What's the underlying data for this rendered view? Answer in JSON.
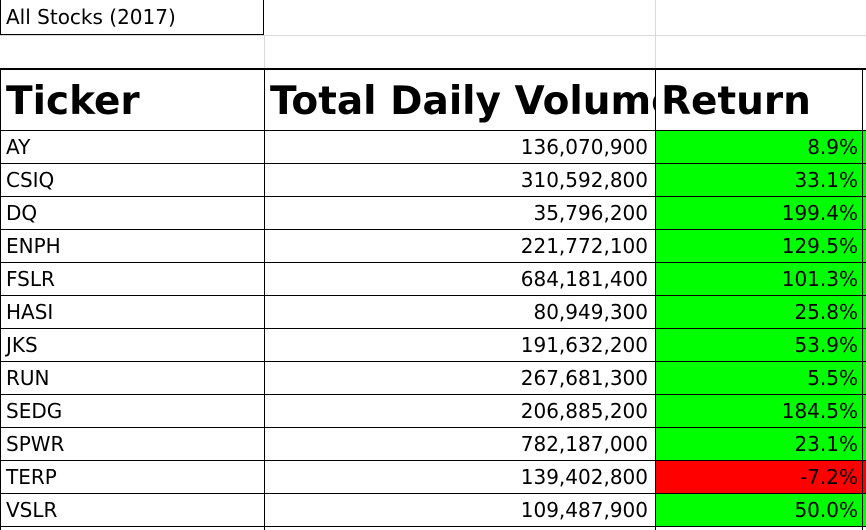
{
  "sheet": {
    "title": "All Stocks (2017)",
    "headers": {
      "ticker": "Ticker",
      "volume": "Total Daily Volume",
      "return": "Return"
    },
    "colors": {
      "positive": "#00ff00",
      "negative": "#ff0000"
    },
    "rows": [
      {
        "ticker": "AY",
        "volume": "136,070,900",
        "return": "8.9%",
        "return_value": 0.089
      },
      {
        "ticker": "CSIQ",
        "volume": "310,592,800",
        "return": "33.1%",
        "return_value": 0.331
      },
      {
        "ticker": "DQ",
        "volume": "35,796,200",
        "return": "199.4%",
        "return_value": 1.994
      },
      {
        "ticker": "ENPH",
        "volume": "221,772,100",
        "return": "129.5%",
        "return_value": 1.295
      },
      {
        "ticker": "FSLR",
        "volume": "684,181,400",
        "return": "101.3%",
        "return_value": 1.013
      },
      {
        "ticker": "HASI",
        "volume": "80,949,300",
        "return": "25.8%",
        "return_value": 0.258
      },
      {
        "ticker": "JKS",
        "volume": "191,632,200",
        "return": "53.9%",
        "return_value": 0.539
      },
      {
        "ticker": "RUN",
        "volume": "267,681,300",
        "return": "5.5%",
        "return_value": 0.055
      },
      {
        "ticker": "SEDG",
        "volume": "206,885,200",
        "return": "184.5%",
        "return_value": 1.845
      },
      {
        "ticker": "SPWR",
        "volume": "782,187,000",
        "return": "23.1%",
        "return_value": 0.231
      },
      {
        "ticker": "TERP",
        "volume": "139,402,800",
        "return": "-7.2%",
        "return_value": -0.072
      },
      {
        "ticker": "VSLR",
        "volume": "109,487,900",
        "return": "50.0%",
        "return_value": 0.5
      }
    ]
  }
}
